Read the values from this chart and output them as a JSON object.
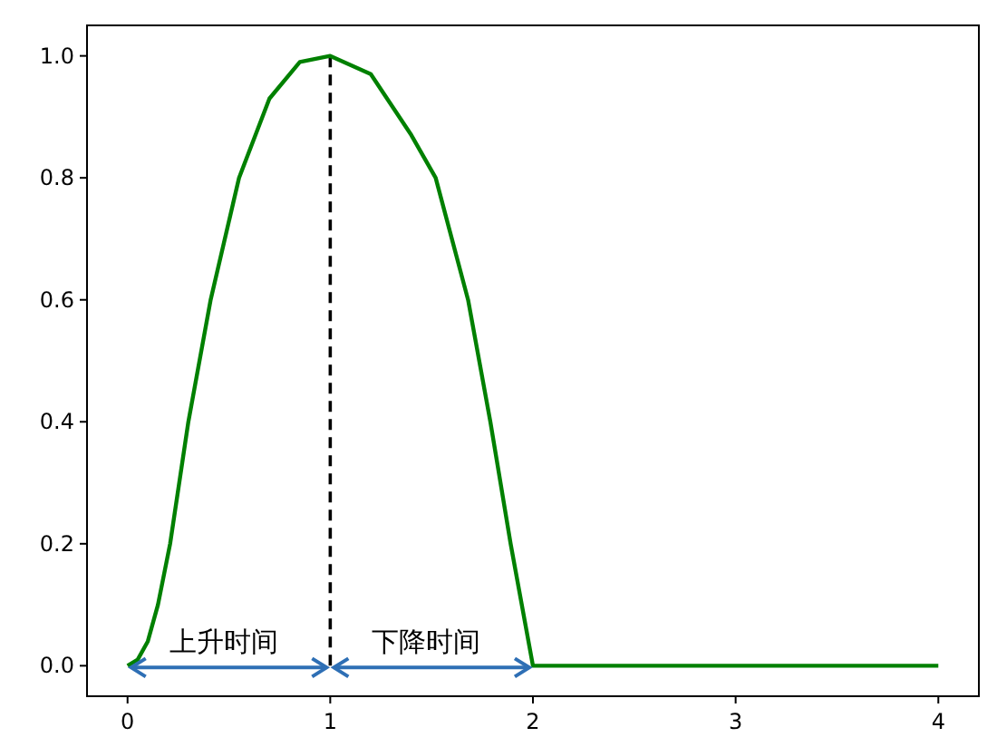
{
  "chart_data": {
    "type": "line",
    "xlim": [
      -0.2,
      4.2
    ],
    "ylim": [
      -0.05,
      1.05
    ],
    "xticks": [
      0,
      1,
      2,
      3,
      4
    ],
    "yticks": [
      {
        "value": 0,
        "label": "0.0"
      },
      {
        "value": 0.2,
        "label": "0.2"
      },
      {
        "value": 0.4,
        "label": "0.4"
      },
      {
        "value": 0.6,
        "label": "0.6"
      },
      {
        "value": 0.8,
        "label": "0.8"
      },
      {
        "value": 1,
        "label": "1.0"
      }
    ],
    "series": [
      {
        "color": "#008000",
        "x": [
          0,
          0.05,
          0.1,
          0.15,
          0.21,
          0.3,
          0.41,
          0.55,
          0.7,
          0.85,
          1,
          1.2,
          1.4,
          1.52,
          1.68,
          1.79,
          1.89,
          2,
          4
        ],
        "values": [
          0,
          0.01,
          0.04,
          0.1,
          0.2,
          0.4,
          0.6,
          0.8,
          0.93,
          0.99,
          1,
          0.97,
          0.87,
          0.8,
          0.6,
          0.4,
          0.2,
          0,
          0
        ]
      }
    ],
    "ref_lines": [
      {
        "axis": "x",
        "value": 1,
        "color": "#000000",
        "line_style": "dashed"
      }
    ],
    "annotations": [
      "上升时间",
      "下降时间"
    ]
  }
}
